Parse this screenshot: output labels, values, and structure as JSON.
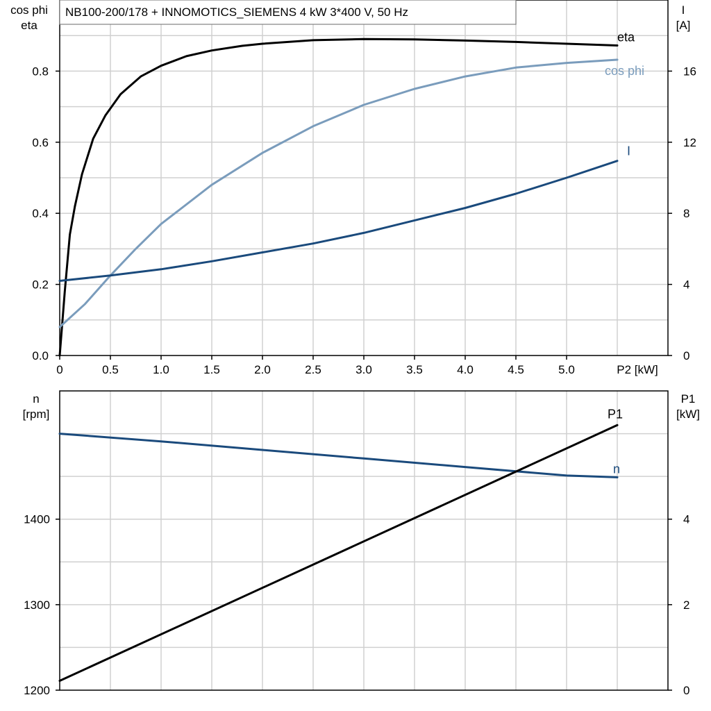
{
  "chart_data": [
    {
      "type": "line",
      "title": "NB100-200/178 + INNOMOTICS_SIEMENS   4 kW   3*400 V, 50 Hz",
      "xlabel": "P2 [kW]",
      "ylabel_left": [
        "cos phi",
        "eta"
      ],
      "ylabel_right": [
        "I",
        "[A]"
      ],
      "xlim": [
        0,
        6
      ],
      "ylim_left": [
        0,
        1.0
      ],
      "ylim_right": [
        0,
        20
      ],
      "x_ticks": [
        "0",
        "0.5",
        "1.0",
        "1.5",
        "2.0",
        "2.5",
        "3.0",
        "3.5",
        "4.0",
        "4.5",
        "5.0"
      ],
      "y_ticks_left": [
        "0.0",
        "0.2",
        "0.4",
        "0.6",
        "0.8"
      ],
      "y_ticks_right": [
        "0",
        "4",
        "8",
        "12",
        "16"
      ],
      "grid": true,
      "series": [
        {
          "name": "eta",
          "axis": "left",
          "color": "#000000",
          "x": [
            0,
            0.05,
            0.1,
            0.15,
            0.22,
            0.33,
            0.45,
            0.6,
            0.8,
            1.0,
            1.25,
            1.5,
            1.8,
            2.0,
            2.5,
            3.0,
            3.5,
            4.0,
            4.5,
            5.0,
            5.5
          ],
          "y": [
            0,
            0.18,
            0.34,
            0.42,
            0.51,
            0.61,
            0.675,
            0.735,
            0.785,
            0.815,
            0.842,
            0.858,
            0.871,
            0.877,
            0.887,
            0.89,
            0.889,
            0.886,
            0.882,
            0.877,
            0.872
          ]
        },
        {
          "name": "cos phi",
          "axis": "left",
          "color": "#7a9cbc",
          "x": [
            0,
            0.25,
            0.5,
            0.75,
            1.0,
            1.5,
            2.0,
            2.5,
            3.0,
            3.5,
            4.0,
            4.5,
            5.0,
            5.5
          ],
          "y": [
            0.08,
            0.145,
            0.225,
            0.3,
            0.37,
            0.48,
            0.57,
            0.645,
            0.705,
            0.75,
            0.785,
            0.81,
            0.823,
            0.832
          ]
        },
        {
          "name": "I",
          "axis": "right",
          "color": "#1a4a7c",
          "x": [
            0,
            0.5,
            1.0,
            1.5,
            2.0,
            2.5,
            3.0,
            3.5,
            4.0,
            4.5,
            5.0,
            5.5
          ],
          "y": [
            4.2,
            4.5,
            4.85,
            5.3,
            5.8,
            6.3,
            6.9,
            7.6,
            8.3,
            9.1,
            10.0,
            10.95
          ]
        }
      ]
    },
    {
      "type": "line",
      "xlabel": "",
      "ylabel_left": [
        "n",
        "[rpm]"
      ],
      "ylabel_right": [
        "P1",
        "[kW]"
      ],
      "xlim": [
        0,
        6
      ],
      "ylim_left": [
        1200,
        1550
      ],
      "ylim_right": [
        0,
        7
      ],
      "y_ticks_left": [
        "1200",
        "1300",
        "1400"
      ],
      "y_ticks_right": [
        "0",
        "2",
        "4"
      ],
      "grid": true,
      "series": [
        {
          "name": "n",
          "axis": "left",
          "color": "#1a4a7c",
          "x": [
            0,
            1.0,
            2.0,
            3.0,
            4.0,
            5.0,
            5.5
          ],
          "y": [
            1500,
            1491,
            1481,
            1471,
            1461,
            1451,
            1449
          ]
        },
        {
          "name": "P1",
          "axis": "right",
          "color": "#000000",
          "x": [
            0,
            5.5
          ],
          "y": [
            0.22,
            6.2
          ]
        }
      ]
    }
  ]
}
